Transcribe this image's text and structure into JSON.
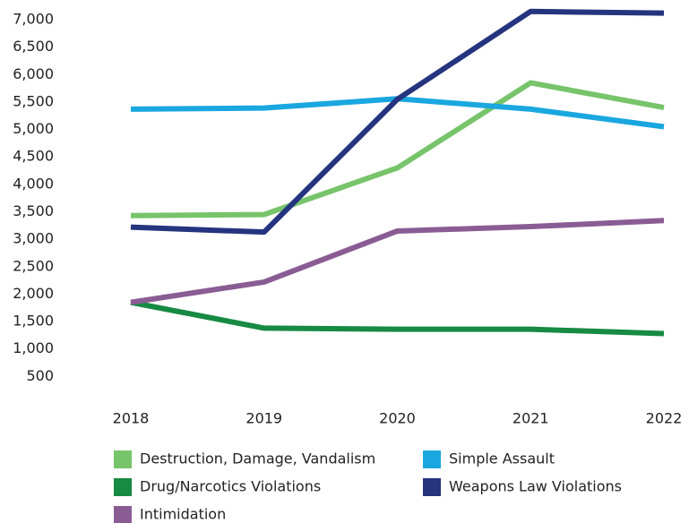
{
  "chart_data": {
    "type": "line",
    "x": [
      2018,
      2019,
      2020,
      2021,
      2022
    ],
    "ylim": [
      0,
      7000
    ],
    "yticks": [
      500,
      {
        "value": 1000,
        "label": "1,000"
      },
      {
        "value": 1500,
        "label": "1,500"
      },
      {
        "value": 2000,
        "label": "2,000"
      },
      {
        "value": 2500,
        "label": "2,500"
      },
      {
        "value": 3000,
        "label": "3,000"
      },
      {
        "value": 3500,
        "label": "3,500"
      },
      {
        "value": 4000,
        "label": "4,000"
      },
      {
        "value": 4500,
        "label": "4,500"
      },
      {
        "value": 5000,
        "label": "5,000"
      },
      {
        "value": 5500,
        "label": "5,500"
      },
      {
        "value": 6000,
        "label": "6,000"
      },
      {
        "value": 6500,
        "label": "6,500"
      },
      {
        "value": 7000,
        "label": "7,000"
      }
    ],
    "grid": false,
    "series": [
      {
        "name": "Destruction, Damage, Vandalism",
        "color": "#77c46b",
        "values": [
          3430,
          3450,
          4300,
          5850,
          5400
        ]
      },
      {
        "name": "Simple Assault",
        "color": "#1aa7df",
        "values": [
          5370,
          5390,
          5560,
          5370,
          5050
        ]
      },
      {
        "name": "Drug/Narcotics Violations",
        "color": "#178a43",
        "values": [
          1850,
          1380,
          1360,
          1360,
          1280
        ]
      },
      {
        "name": "Weapons Law Violations",
        "color": "#25347f",
        "values": [
          3220,
          3130,
          5550,
          7150,
          7120
        ]
      },
      {
        "name": "Intimidation",
        "color": "#8a5c94",
        "values": [
          1850,
          2220,
          3150,
          3230,
          3340
        ]
      }
    ]
  }
}
